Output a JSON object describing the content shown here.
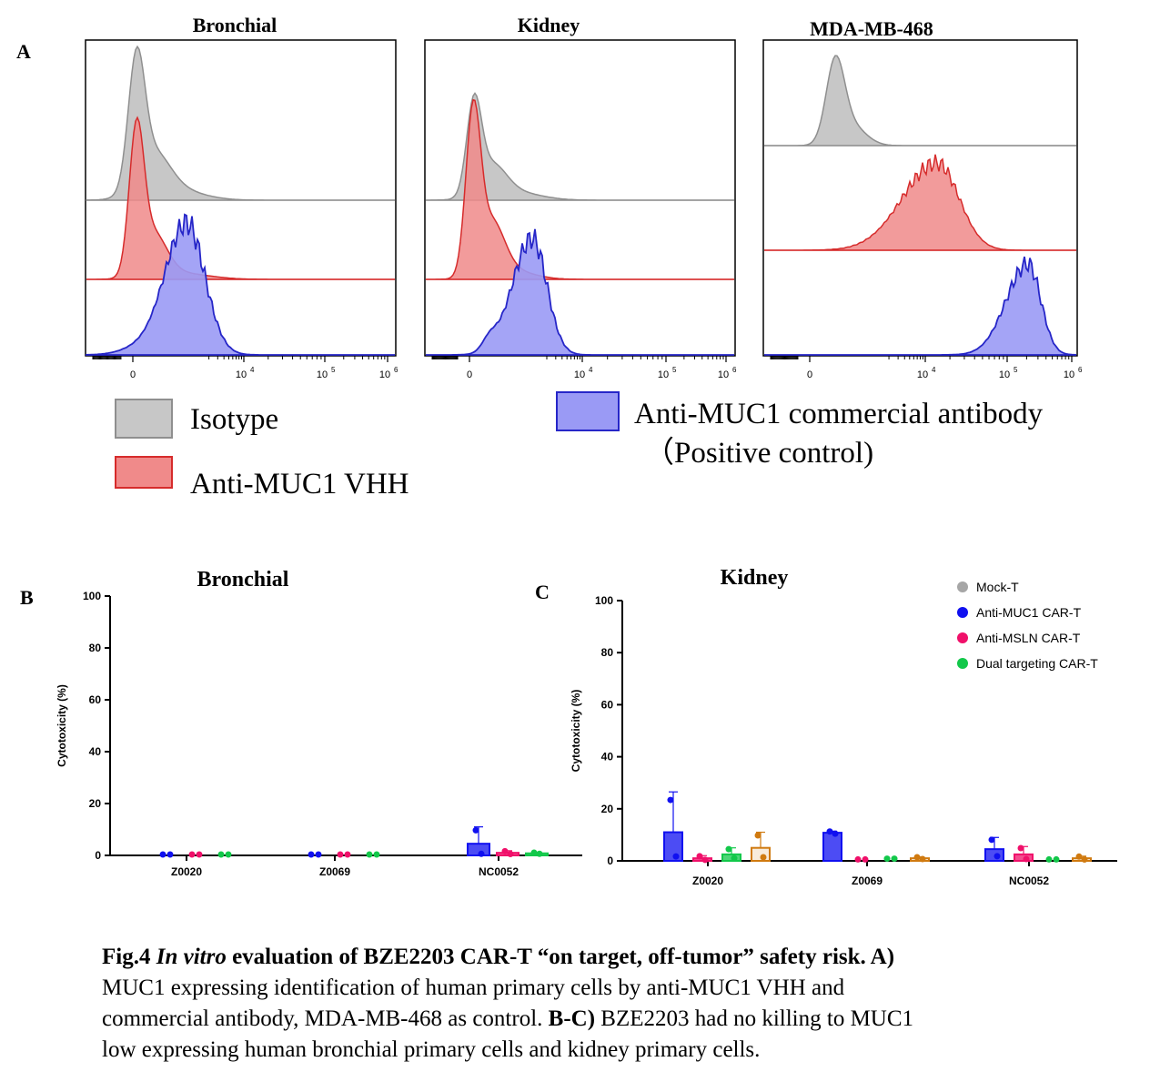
{
  "panel_a": {
    "label": "A",
    "titles": [
      "Bronchial",
      "Kidney",
      "MDA-MB-468"
    ],
    "x_tick_labels": {
      "zero": "0",
      "e4": "4",
      "e5": "5",
      "e6": "6",
      "base": "10"
    },
    "legend": {
      "isotype": "Isotype",
      "vhh": "Anti-MUC1 VHH",
      "commercial_line1": "Anti-MUC1 commercial antibody",
      "commercial_line2": "（Positive control)"
    }
  },
  "panel_b": {
    "label": "B",
    "title": "Bronchial"
  },
  "panel_c": {
    "label": "C",
    "title": "Kidney"
  },
  "legend_bc": [
    "Mock-T",
    "Anti-MUC1 CAR-T",
    "Anti-MSLN CAR-T",
    "Dual targeting CAR-T"
  ],
  "colors": {
    "isotype_fill": "#c7c7c7",
    "isotype_stroke": "#8f8f8f",
    "vhh_fill": "#f08a8a",
    "vhh_stroke": "#d62b2b",
    "commercial_fill": "#9a9af5",
    "commercial_stroke": "#2626c8",
    "mock": "#a6a6a6",
    "muc1": "#1010f0",
    "msln": "#f0106a",
    "dual": "#12c84a",
    "extra": "#d07a10"
  },
  "chart_data": [
    {
      "type": "bar",
      "title": "Bronchial",
      "ylabel": "Cytotoxicity (%)",
      "ylim": [
        0,
        100
      ],
      "yticks": [
        0,
        20,
        40,
        60,
        80,
        100
      ],
      "categories": [
        "Z0020",
        "Z0069",
        "NC0052"
      ],
      "series": [
        {
          "name": "Anti-MUC1 CAR-T",
          "values": [
            0,
            0,
            4.5
          ],
          "errors": [
            0,
            0,
            6.5
          ]
        },
        {
          "name": "Anti-MSLN CAR-T",
          "values": [
            0,
            0,
            1
          ],
          "errors": [
            0,
            0,
            0.8
          ]
        },
        {
          "name": "Dual targeting CAR-T",
          "values": [
            0,
            0,
            0.8
          ],
          "errors": [
            0,
            0,
            0.3
          ]
        }
      ]
    },
    {
      "type": "bar",
      "title": "Kidney",
      "ylabel": "Cytotoxicity (%)",
      "ylim": [
        0,
        100
      ],
      "yticks": [
        0,
        20,
        40,
        60,
        80,
        100
      ],
      "categories": [
        "Z0020",
        "Z0069",
        "NC0052"
      ],
      "series": [
        {
          "name": "Anti-MUC1 CAR-T",
          "values": [
            11,
            10.8,
            4.5
          ],
          "errors": [
            15.5,
            0.6,
            4.5
          ]
        },
        {
          "name": "Anti-MSLN CAR-T",
          "values": [
            1,
            0.2,
            2.5
          ],
          "errors": [
            1,
            0.2,
            3
          ]
        },
        {
          "name": "Dual targeting CAR-T",
          "values": [
            2.5,
            0.5,
            0.2
          ],
          "errors": [
            2.5,
            0.3,
            0.1
          ]
        },
        {
          "name": "",
          "values": [
            5,
            1,
            1
          ],
          "errors": [
            6,
            0.5,
            0.8
          ]
        }
      ]
    }
  ],
  "caption": {
    "fig_label": "Fig.4",
    "italic": "In vitro",
    "title_rest": " evaluation of BZE2203 CAR-T “on target, off-tumor” safety risk. A)",
    "line2": "MUC1 expressing identification of human primary cells by anti-MUC1 VHH and",
    "line3_a": "commercial antibody, MDA-MB-468 as control. ",
    "line3_b": "B-C)",
    "line3_c": " BZE2203 had no killing to MUC1",
    "line4": "low expressing human bronchial primary cells and kidney primary cells."
  }
}
